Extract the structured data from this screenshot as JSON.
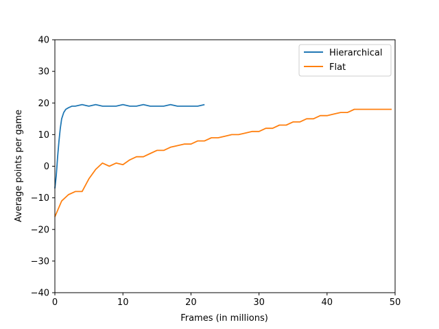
{
  "chart_data": {
    "type": "line",
    "title": "",
    "xlabel": "Frames (in millions)",
    "ylabel": "Average points per game",
    "xlim": [
      0,
      50
    ],
    "ylim": [
      -40,
      40
    ],
    "xticks": [
      0,
      10,
      20,
      30,
      40,
      50
    ],
    "yticks": [
      -40,
      -30,
      -20,
      -10,
      0,
      10,
      20,
      30,
      40
    ],
    "grid": false,
    "legend_position": "top-right",
    "series": [
      {
        "name": "Hierarchical",
        "color": "#1f77b4",
        "x": [
          0,
          0.2,
          0.4,
          0.6,
          0.8,
          1.0,
          1.3,
          1.6,
          2.0,
          2.5,
          3.0,
          4.0,
          5.0,
          6.0,
          7.0,
          8.0,
          9.0,
          10.0,
          11.0,
          12.0,
          13.0,
          14.0,
          15.0,
          16.0,
          17.0,
          18.0,
          19.0,
          20.0,
          21.0,
          22.0
        ],
        "y": [
          -7,
          -3,
          3,
          8,
          12,
          15,
          17,
          18,
          18.5,
          19,
          19,
          19.5,
          19,
          19.5,
          19,
          19,
          19,
          19.5,
          19,
          19,
          19.5,
          19,
          19,
          19,
          19.5,
          19,
          19,
          19,
          19,
          19.5
        ]
      },
      {
        "name": "Flat",
        "color": "#ff7f0e",
        "x": [
          0,
          1,
          2,
          3,
          4,
          5,
          6,
          7,
          8,
          9,
          10,
          11,
          12,
          13,
          14,
          15,
          16,
          17,
          18,
          19,
          20,
          21,
          22,
          23,
          24,
          25,
          26,
          27,
          28,
          29,
          30,
          31,
          32,
          33,
          34,
          35,
          36,
          37,
          38,
          39,
          40,
          41,
          42,
          43,
          44,
          45,
          46,
          47,
          48,
          49,
          49.5
        ],
        "y": [
          -16,
          -11,
          -9,
          -8,
          -8,
          -4,
          -1,
          1,
          0,
          1,
          0.5,
          2,
          3,
          3,
          4,
          5,
          5,
          6,
          6.5,
          7,
          7,
          8,
          8,
          9,
          9,
          9.5,
          10,
          10,
          10.5,
          11,
          11,
          12,
          12,
          13,
          13,
          14,
          14,
          15,
          15,
          16,
          16,
          16.5,
          17,
          17,
          18,
          18,
          18,
          18,
          18,
          18,
          18
        ]
      }
    ]
  }
}
